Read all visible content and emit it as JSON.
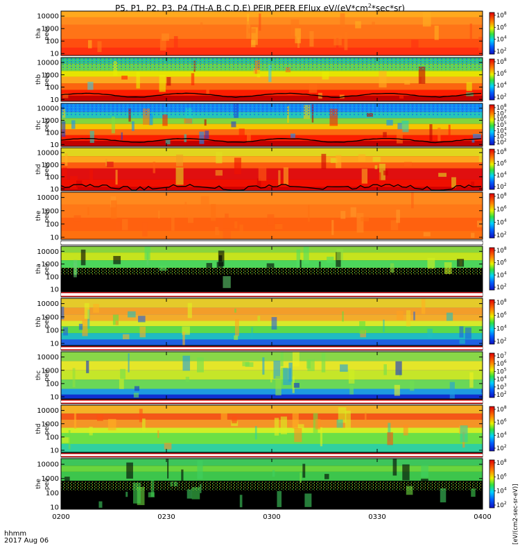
{
  "title": {
    "main": "P5, P1, P2, P3, P4 (TH-A,B,C,D,E) PEIR,PEER EFlux eV/(eV*cm",
    "sup": "2",
    "tail": "*sec*sr)"
  },
  "footer": {
    "hhmm": "hhmm",
    "date": "2017 Aug 06"
  },
  "units_label": "[eV/(cm2-sec-sr-eV)]",
  "colors": {
    "saturated_red": "#e01010",
    "fill_black": "#000000",
    "band_separator_red": "#ff0000",
    "band_separator_white": "#ffffff"
  },
  "chart_data": {
    "type": "heatmap",
    "x_ticks": [
      "0200",
      "0230",
      "0300",
      "0330",
      "0400"
    ],
    "x_range": [
      "02:00",
      "04:00"
    ],
    "y_ticks": [
      "10",
      "100",
      "1000",
      "10000"
    ],
    "y_scale": "log",
    "y_unit": "eV",
    "colormap": "rainbow (blue-green-yellow-red)",
    "panels": [
      {
        "probe": "tha",
        "species": "peer",
        "label1": "tha",
        "label2": "peer",
        "colorbar": [
          "10",
          "10",
          "10",
          "10"
        ],
        "colorbar_exp": [
          "2",
          "4",
          "6",
          "8"
        ],
        "dominant": "orange-red",
        "note": "high flux at all energies"
      },
      {
        "probe": "thb",
        "species": "peer",
        "label1": "thb",
        "label2": "peer",
        "colorbar": [
          "10",
          "10",
          "10",
          "10"
        ],
        "colorbar_exp": [
          "2",
          "4",
          "6",
          "8"
        ],
        "dominant": "red low energy, green above 1000 eV"
      },
      {
        "probe": "thc",
        "species": "peer",
        "label1": "thc",
        "label2": "peer",
        "colorbar": [
          "10",
          "10",
          "10",
          "10",
          "10",
          "10",
          "10"
        ],
        "colorbar_exp": [
          "2",
          "3",
          "4",
          "5",
          "6",
          "7",
          "8"
        ],
        "dominant": "red low energy, green/blue above 1000 eV"
      },
      {
        "probe": "thd",
        "species": "peer",
        "label1": "thd",
        "label2": "peer",
        "colorbar": [
          "10",
          "10",
          "10",
          "10"
        ],
        "colorbar_exp": [
          "2",
          "4",
          "6",
          "8"
        ],
        "dominant": "red/yellow broad band 30-1000 eV"
      },
      {
        "probe": "the",
        "species": "peer",
        "label1": "the",
        "label2": "peer",
        "colorbar": [
          "10",
          "10",
          "10",
          "10"
        ],
        "colorbar_exp": [
          "2",
          "4",
          "6",
          "8"
        ],
        "dominant": "orange across all energies"
      },
      {
        "probe": "tha",
        "species": "peir",
        "label1": "tha",
        "label2": "peir",
        "colorbar": [
          "10",
          "10",
          "10",
          "10"
        ],
        "colorbar_exp": [
          "2",
          "4",
          "6",
          "8"
        ],
        "dominant": "black below ~300 eV, green/yellow above"
      },
      {
        "probe": "thb",
        "species": "peir",
        "label1": "thb",
        "label2": "peir",
        "colorbar": [
          "10",
          "10",
          "10",
          "10"
        ],
        "colorbar_exp": [
          "2",
          "4",
          "6",
          "8"
        ],
        "dominant": "yellow/orange peak near 1000 eV"
      },
      {
        "probe": "thc",
        "species": "peir",
        "label1": "thc",
        "label2": "peir",
        "colorbar": [
          "10",
          "10",
          "10",
          "10",
          "10",
          "10"
        ],
        "colorbar_exp": [
          "2",
          "3",
          "4",
          "5",
          "6",
          "7"
        ],
        "dominant": "yellow/green broad, blue at 10 eV"
      },
      {
        "probe": "thd",
        "species": "peir",
        "label1": "thd",
        "label2": "peir",
        "colorbar": [
          "10",
          "10",
          "10",
          "10"
        ],
        "colorbar_exp": [
          "2",
          "4",
          "6",
          "8"
        ],
        "dominant": "red/orange band near 1000 eV, intermittent"
      },
      {
        "probe": "the",
        "species": "peir",
        "label1": "the",
        "label2": "peir",
        "colorbar": [
          "10",
          "10",
          "10",
          "10"
        ],
        "colorbar_exp": [
          "2",
          "4",
          "6",
          "8"
        ],
        "dominant": "black below ~300 eV, green above"
      }
    ]
  }
}
